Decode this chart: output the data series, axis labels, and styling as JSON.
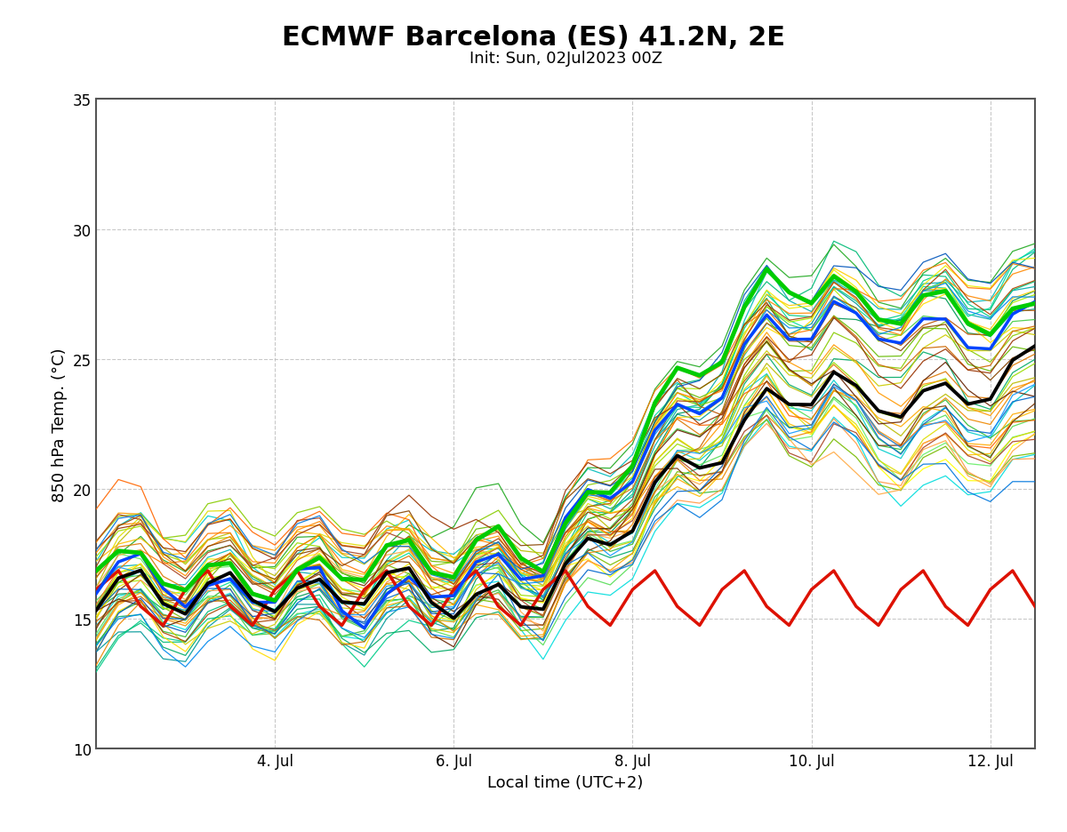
{
  "title": "ECMWF Barcelona (ES) 41.2N, 2E",
  "subtitle": "Init: Sun, 02Jul2023 00Z",
  "xlabel": "Local time (UTC+2)",
  "ylabel": "850 hPa Temp. (°C)",
  "xlim_days": [
    2.0,
    12.5
  ],
  "ylim": [
    10,
    35
  ],
  "yticks": [
    10,
    15,
    20,
    25,
    30,
    35
  ],
  "xtick_labels": [
    "4. Jul",
    "6. Jul",
    "8. Jul",
    "10. Jul",
    "12. Jul"
  ],
  "xtick_positions": [
    4,
    6,
    8,
    10,
    12
  ],
  "background_color": "#ffffff",
  "grid_color": "#bbbbbb",
  "title_fontsize": 22,
  "subtitle_fontsize": 13,
  "label_fontsize": 13,
  "tick_fontsize": 12,
  "n_ensemble": 50,
  "seed": 42,
  "ensemble_colors": [
    "#00cccc",
    "#00bbbb",
    "#00aaaa",
    "#009999",
    "#00dddd",
    "#00cc88",
    "#00bb77",
    "#00aa66",
    "#009955",
    "#00dd99",
    "#44cc44",
    "#33bb33",
    "#22aa22",
    "#55dd55",
    "#66ee66",
    "#88cc00",
    "#77bb00",
    "#99dd00",
    "#aaee00",
    "#66bb00",
    "#cccc00",
    "#bbbb00",
    "#dddd00",
    "#eeee00",
    "#ffff00",
    "#ffcc00",
    "#ffbb00",
    "#ffaa00",
    "#ff9900",
    "#ffdd00",
    "#ff8800",
    "#ff7700",
    "#ff6600",
    "#ff9944",
    "#ffaa44",
    "#cc6600",
    "#bb5500",
    "#aa4400",
    "#dd7700",
    "#ee8800",
    "#884400",
    "#773300",
    "#662200",
    "#993300",
    "#aa4422",
    "#0066cc",
    "#0077dd",
    "#0088ee",
    "#0055bb",
    "#1199ff"
  ]
}
